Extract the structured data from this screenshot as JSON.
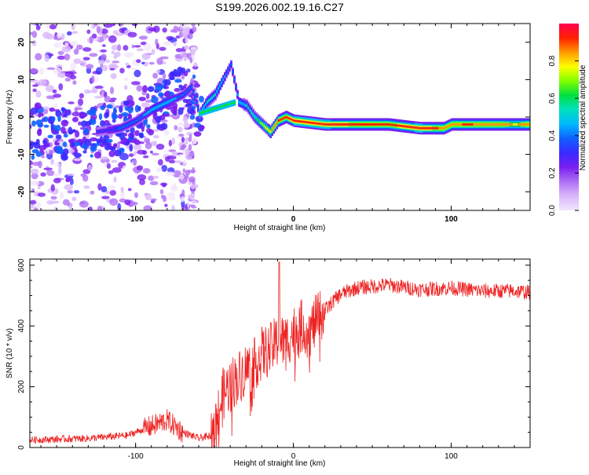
{
  "title": "S199.2026.002.19.16.C27",
  "chart_data": [
    {
      "type": "heatmap",
      "name": "spectrogram",
      "xlabel": "Height of straight line (km)",
      "ylabel": "Frequency (Hz)",
      "xlim": [
        -167,
        150
      ],
      "ylim": [
        -25,
        25
      ],
      "x_ticks": [
        -100,
        0,
        100
      ],
      "y_ticks": [
        20,
        10,
        0,
        -10,
        -20
      ],
      "colorbar": {
        "label": "Normalized spectral amplitude",
        "range": [
          0,
          1
        ],
        "ticks": [
          "0.0",
          "0.2",
          "0.4",
          "0.6",
          "0.8"
        ],
        "colormap": [
          "#f2e6fd",
          "#d9b8fb",
          "#b070f5",
          "#7a1ff0",
          "#3a2aff",
          "#1060ff",
          "#00b8ff",
          "#00e0c0",
          "#00e040",
          "#80ff00",
          "#ffff00",
          "#ff9900",
          "#ff2000",
          "#ff0050"
        ]
      },
      "ridge": {
        "x": [
          -125,
          -110,
          -100,
          -90,
          -80,
          -70,
          -65,
          -60,
          -55,
          -50,
          -45,
          -40,
          -35,
          -30,
          -25,
          -20,
          -15,
          -10,
          -5,
          0,
          20,
          40,
          60,
          80,
          90,
          95,
          100,
          110,
          120,
          130,
          140,
          150
        ],
        "y": [
          -4,
          -3,
          -1,
          2,
          4,
          6,
          8,
          1,
          4,
          6,
          10,
          14,
          4,
          3,
          0,
          -2,
          -4,
          -1,
          0,
          -1,
          -2,
          -2,
          -2,
          -3,
          -3,
          -3,
          -2,
          -2,
          -2,
          -2,
          -2,
          -2
        ],
        "amplitude": [
          0.3,
          0.35,
          0.4,
          0.45,
          0.45,
          0.4,
          0.35,
          0.4,
          0.5,
          0.5,
          0.45,
          0.35,
          0.45,
          0.5,
          0.55,
          0.7,
          0.8,
          0.9,
          0.9,
          0.95,
          0.95,
          0.9,
          0.9,
          0.95,
          0.9,
          0.85,
          0.85,
          0.9,
          0.85,
          0.85,
          0.8,
          0.85
        ]
      }
    },
    {
      "type": "line",
      "name": "snr",
      "xlabel": "Height of straight line (km)",
      "ylabel": "SNR (10 * v/v)",
      "xlim": [
        -167,
        150
      ],
      "ylim": [
        0,
        620
      ],
      "x_ticks": [
        -100,
        0,
        100
      ],
      "y_ticks": [
        0,
        200,
        400,
        600
      ],
      "color": "#ee2222",
      "profile": {
        "x": [
          -167,
          -130,
          -105,
          -90,
          -80,
          -70,
          -60,
          -52,
          -48,
          -45,
          -40,
          -35,
          -30,
          -25,
          -20,
          -15,
          -10,
          -5,
          0,
          5,
          10,
          15,
          20,
          25,
          30,
          40,
          50,
          60,
          80,
          100,
          120,
          140,
          150
        ],
        "y": [
          25,
          30,
          40,
          70,
          90,
          50,
          30,
          40,
          100,
          170,
          210,
          230,
          260,
          270,
          310,
          320,
          350,
          350,
          380,
          400,
          380,
          420,
          450,
          480,
          505,
          525,
          530,
          535,
          520,
          525,
          515,
          515,
          510
        ]
      }
    }
  ]
}
